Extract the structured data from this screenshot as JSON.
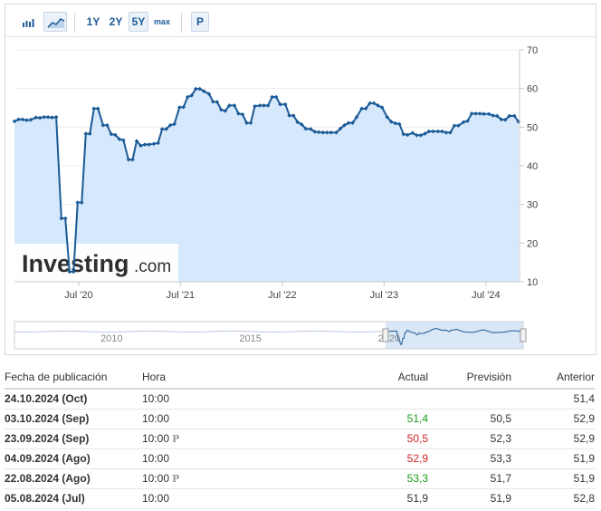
{
  "toolbar": {
    "range_buttons": [
      "1Y",
      "2Y",
      "5Y",
      "max"
    ],
    "active_range": "5Y",
    "prelim_button": "P"
  },
  "chart_data": {
    "type": "area",
    "y_axis": {
      "min": 10,
      "max": 70,
      "ticks": [
        10,
        20,
        30,
        40,
        50,
        60,
        70
      ],
      "position": "right"
    },
    "x_ticks": [
      {
        "label": "Jul '20",
        "t": 2020.5
      },
      {
        "label": "Jul '21",
        "t": 2021.5
      },
      {
        "label": "Jul '22",
        "t": 2022.5
      },
      {
        "label": "Jul '23",
        "t": 2023.5
      },
      {
        "label": "Jul '24",
        "t": 2024.5
      }
    ],
    "x_range": [
      2019.87,
      2024.83
    ],
    "series": [
      {
        "points": [
          [
            2019.87,
            51.5
          ],
          [
            2019.91,
            52.0
          ],
          [
            2019.95,
            52.0
          ],
          [
            2019.99,
            51.8
          ],
          [
            2020.03,
            51.9
          ],
          [
            2020.08,
            52.5
          ],
          [
            2020.12,
            52.4
          ],
          [
            2020.16,
            52.6
          ],
          [
            2020.2,
            52.6
          ],
          [
            2020.24,
            52.5
          ],
          [
            2020.28,
            52.6
          ],
          [
            2020.33,
            26.4
          ],
          [
            2020.37,
            26.4
          ],
          [
            2020.41,
            12.6
          ],
          [
            2020.45,
            12.6
          ],
          [
            2020.49,
            30.5
          ],
          [
            2020.53,
            30.5
          ],
          [
            2020.57,
            48.3
          ],
          [
            2020.61,
            48.3
          ],
          [
            2020.65,
            54.8
          ],
          [
            2020.69,
            54.8
          ],
          [
            2020.74,
            50.5
          ],
          [
            2020.78,
            50.5
          ],
          [
            2020.82,
            48.2
          ],
          [
            2020.86,
            48.0
          ],
          [
            2020.9,
            46.9
          ],
          [
            2020.94,
            46.6
          ],
          [
            2020.99,
            41.6
          ],
          [
            2021.03,
            41.6
          ],
          [
            2021.07,
            46.4
          ],
          [
            2021.11,
            45.2
          ],
          [
            2021.15,
            45.5
          ],
          [
            2021.19,
            45.5
          ],
          [
            2021.24,
            45.7
          ],
          [
            2021.28,
            45.9
          ],
          [
            2021.32,
            49.5
          ],
          [
            2021.36,
            49.5
          ],
          [
            2021.4,
            50.5
          ],
          [
            2021.44,
            50.8
          ],
          [
            2021.49,
            55.1
          ],
          [
            2021.53,
            55.2
          ],
          [
            2021.57,
            57.8
          ],
          [
            2021.61,
            58.2
          ],
          [
            2021.65,
            59.9
          ],
          [
            2021.69,
            59.9
          ],
          [
            2021.73,
            59.3
          ],
          [
            2021.78,
            58.6
          ],
          [
            2021.82,
            56.6
          ],
          [
            2021.86,
            56.5
          ],
          [
            2021.9,
            54.5
          ],
          [
            2021.94,
            54.2
          ],
          [
            2021.98,
            55.6
          ],
          [
            2022.03,
            55.6
          ],
          [
            2022.07,
            53.5
          ],
          [
            2022.11,
            53.3
          ],
          [
            2022.15,
            51.1
          ],
          [
            2022.19,
            51.1
          ],
          [
            2022.23,
            55.4
          ],
          [
            2022.28,
            55.6
          ],
          [
            2022.32,
            55.6
          ],
          [
            2022.36,
            55.6
          ],
          [
            2022.4,
            57.8
          ],
          [
            2022.44,
            57.8
          ],
          [
            2022.48,
            55.9
          ],
          [
            2022.53,
            55.9
          ],
          [
            2022.57,
            53.0
          ],
          [
            2022.61,
            53.0
          ],
          [
            2022.65,
            51.3
          ],
          [
            2022.69,
            50.7
          ],
          [
            2022.73,
            49.6
          ],
          [
            2022.78,
            49.5
          ],
          [
            2022.82,
            48.8
          ],
          [
            2022.86,
            48.7
          ],
          [
            2022.9,
            48.6
          ],
          [
            2022.94,
            48.6
          ],
          [
            2022.98,
            48.6
          ],
          [
            2023.03,
            48.6
          ],
          [
            2023.07,
            49.6
          ],
          [
            2023.11,
            50.5
          ],
          [
            2023.15,
            51.1
          ],
          [
            2023.19,
            51.1
          ],
          [
            2023.23,
            52.6
          ],
          [
            2023.28,
            54.8
          ],
          [
            2023.32,
            54.8
          ],
          [
            2023.36,
            56.2
          ],
          [
            2023.4,
            56.2
          ],
          [
            2023.44,
            55.6
          ],
          [
            2023.48,
            55.1
          ],
          [
            2023.53,
            52.6
          ],
          [
            2023.57,
            51.4
          ],
          [
            2023.61,
            51.0
          ],
          [
            2023.65,
            50.8
          ],
          [
            2023.69,
            48.2
          ],
          [
            2023.73,
            48.0
          ],
          [
            2023.78,
            48.5
          ],
          [
            2023.82,
            47.9
          ],
          [
            2023.86,
            47.9
          ],
          [
            2023.9,
            48.3
          ],
          [
            2023.94,
            48.9
          ],
          [
            2023.98,
            48.9
          ],
          [
            2024.03,
            48.9
          ],
          [
            2024.07,
            48.9
          ],
          [
            2024.11,
            48.6
          ],
          [
            2024.15,
            48.6
          ],
          [
            2024.19,
            50.4
          ],
          [
            2024.23,
            50.4
          ],
          [
            2024.28,
            51.3
          ],
          [
            2024.32,
            51.6
          ],
          [
            2024.36,
            53.5
          ],
          [
            2024.4,
            53.5
          ],
          [
            2024.44,
            53.5
          ],
          [
            2024.48,
            53.4
          ],
          [
            2024.53,
            53.4
          ],
          [
            2024.57,
            53.0
          ],
          [
            2024.61,
            52.9
          ],
          [
            2024.65,
            52.0
          ],
          [
            2024.69,
            51.9
          ],
          [
            2024.73,
            52.9
          ],
          [
            2024.78,
            52.9
          ],
          [
            2024.82,
            51.4
          ]
        ]
      }
    ],
    "navigator": {
      "labels": [
        "2010",
        "2015",
        "2020"
      ],
      "label_t": [
        2010.0,
        2015.0,
        2020.0
      ],
      "t_range": [
        2006.5,
        2024.83
      ]
    }
  },
  "watermark": {
    "brand": "Investing",
    "suffix": ".com"
  },
  "table": {
    "headers": [
      "Fecha de publicación",
      "Hora",
      "Actual",
      "Previsión",
      "Anterior"
    ],
    "rows": [
      {
        "date": "24.10.2024 (Oct)",
        "time": "10:00",
        "prelim": false,
        "actual": "",
        "actual_status": "neu",
        "forecast": "",
        "previous": "51,4"
      },
      {
        "date": "03.10.2024 (Sep)",
        "time": "10:00",
        "prelim": false,
        "actual": "51,4",
        "actual_status": "pos",
        "forecast": "50,5",
        "previous": "52,9"
      },
      {
        "date": "23.09.2024 (Sep)",
        "time": "10:00",
        "prelim": true,
        "actual": "50,5",
        "actual_status": "neg",
        "forecast": "52,3",
        "previous": "52,9"
      },
      {
        "date": "04.09.2024 (Ago)",
        "time": "10:00",
        "prelim": false,
        "actual": "52,9",
        "actual_status": "neg",
        "forecast": "53,3",
        "previous": "51,9"
      },
      {
        "date": "22.08.2024 (Ago)",
        "time": "10:00",
        "prelim": true,
        "actual": "53,3",
        "actual_status": "pos",
        "forecast": "51,7",
        "previous": "51,9"
      },
      {
        "date": "05.08.2024 (Jul)",
        "time": "10:00",
        "prelim": false,
        "actual": "51,9",
        "actual_status": "neu",
        "forecast": "51,9",
        "previous": "52,8"
      }
    ],
    "prelim_glyph": "P"
  }
}
